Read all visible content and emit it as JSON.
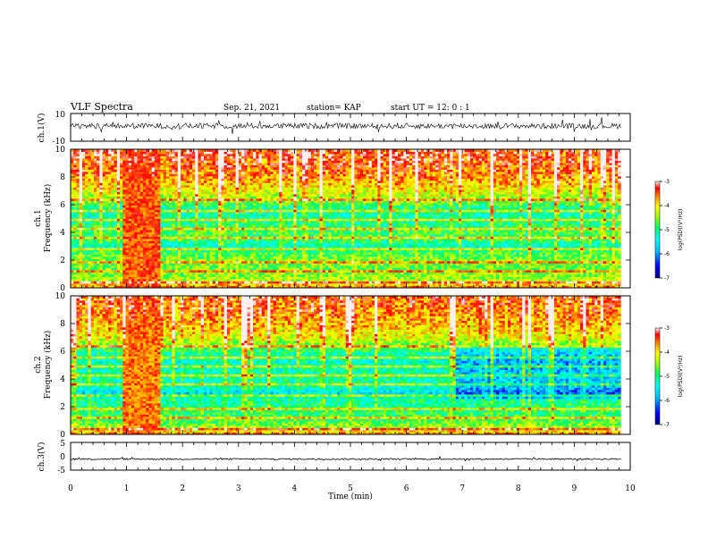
{
  "header": {
    "title": "VLF Spectra",
    "date": "Sep. 21, 2021",
    "station": "station= KAP",
    "start": "start  UT  =  12: 0  : 1"
  },
  "colors": {
    "colormap": [
      "#ffffff",
      "#00008b",
      "#0000ff",
      "#00bfff",
      "#00ffff",
      "#00ff7f",
      "#7fff00",
      "#ffff00",
      "#ff8c00",
      "#ff0000",
      "#ffffff"
    ],
    "trace": "#000000"
  },
  "chart_data": [
    {
      "type": "line",
      "name": "ch1-waveform",
      "ylabel": "ch.1(V)",
      "ylim": [
        -10,
        10
      ],
      "yticks": [
        "10",
        "-10"
      ],
      "x_range_min": [
        0,
        9.83
      ],
      "baseline_V": 1,
      "noise_amplitude_V": 4
    },
    {
      "type": "heatmap",
      "name": "ch1-spectrogram",
      "xlabel": "Time (min)",
      "ylabel_top": "ch.1",
      "ylabel": "Frequency (kHz)",
      "xlim": [
        0,
        10
      ],
      "ylim": [
        0,
        10
      ],
      "yticks": [
        "0",
        "2",
        "4",
        "6",
        "8",
        "10"
      ],
      "data_time_range_min": [
        0,
        9.83
      ],
      "colorbar": {
        "label": "log(PSD)(V²/Hz)",
        "min": -7,
        "max": -3,
        "ticks": [
          "-3",
          "-4",
          "-5",
          "-6",
          "-7"
        ]
      },
      "background_logPSD_by_freq_kHz": [
        [
          0.0,
          -3.5
        ],
        [
          0.3,
          -4.0
        ],
        [
          0.6,
          -4.4
        ],
        [
          1.0,
          -4.6
        ],
        [
          1.5,
          -4.7
        ],
        [
          2.0,
          -4.6
        ],
        [
          2.6,
          -4.9
        ],
        [
          3.0,
          -5.4
        ],
        [
          3.4,
          -5.0
        ],
        [
          4.0,
          -4.9
        ],
        [
          4.6,
          -5.1
        ],
        [
          5.2,
          -5.3
        ],
        [
          5.8,
          -5.2
        ],
        [
          6.2,
          -4.8
        ],
        [
          7.0,
          -4.3
        ],
        [
          8.0,
          -3.9
        ],
        [
          9.0,
          -3.7
        ],
        [
          10.0,
          -3.6
        ]
      ],
      "burst_interval_min": [
        0.95,
        1.6
      ],
      "burst_logPSD": -3.5,
      "late_offset_after_min": [
        7.0,
        0.0
      ]
    },
    {
      "type": "heatmap",
      "name": "ch2-spectrogram",
      "xlabel": "Time (min)",
      "ylabel_top": "ch.2",
      "ylabel": "Frequency (kHz)",
      "xlim": [
        0,
        10
      ],
      "ylim": [
        0,
        10
      ],
      "yticks": [
        "0",
        "2",
        "4",
        "6",
        "8",
        "10"
      ],
      "data_time_range_min": [
        0,
        9.83
      ],
      "colorbar": {
        "label": "log(PSD)(V²/Hz)",
        "min": -7,
        "max": -3,
        "ticks": [
          "-3",
          "-4",
          "-5",
          "-6",
          "-7"
        ]
      },
      "background_logPSD_by_freq_kHz": [
        [
          0.0,
          -3.6
        ],
        [
          0.3,
          -4.1
        ],
        [
          0.6,
          -4.5
        ],
        [
          1.0,
          -4.8
        ],
        [
          1.5,
          -4.9
        ],
        [
          2.0,
          -5.0
        ],
        [
          2.6,
          -5.2
        ],
        [
          3.0,
          -5.7
        ],
        [
          3.4,
          -5.3
        ],
        [
          4.0,
          -5.2
        ],
        [
          4.6,
          -5.3
        ],
        [
          5.2,
          -5.4
        ],
        [
          5.8,
          -5.3
        ],
        [
          6.2,
          -4.9
        ],
        [
          7.0,
          -4.3
        ],
        [
          8.0,
          -4.0
        ],
        [
          9.0,
          -3.8
        ],
        [
          10.0,
          -3.7
        ]
      ],
      "burst_interval_min": [
        0.95,
        1.6
      ],
      "burst_logPSD": -3.6,
      "late_offset_after_min": [
        6.9,
        -0.6
      ]
    },
    {
      "type": "line",
      "name": "ch3-waveform",
      "xlabel": "Time (min)",
      "ylabel": "ch.3(V)",
      "ylim": [
        -5,
        5
      ],
      "yticks": [
        "5",
        "0",
        "-5"
      ],
      "x_range_min": [
        0,
        9.83
      ],
      "baseline_V": -1,
      "noise_amplitude_V": 0.5
    }
  ],
  "xaxis": {
    "label": "Time (min)",
    "ticks": [
      "0",
      "1",
      "2",
      "3",
      "4",
      "5",
      "6",
      "7",
      "8",
      "9",
      "10"
    ]
  }
}
